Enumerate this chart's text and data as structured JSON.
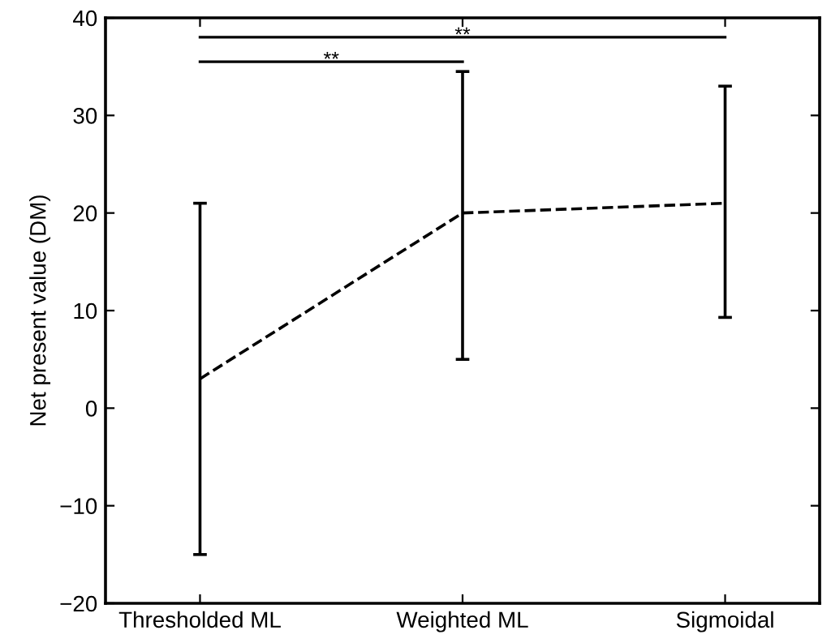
{
  "chart_data": {
    "type": "line",
    "ylabel": "Net present value (DM)",
    "categories": [
      "Thresholded ML",
      "Weighted ML",
      "Sigmoidal"
    ],
    "values": [
      3,
      20,
      21
    ],
    "errors": [
      [
        -15,
        21
      ],
      [
        5,
        34.5
      ],
      [
        9.3,
        33
      ]
    ],
    "color": "#000000",
    "line_style": "dashed",
    "marker": "none",
    "ylim": [
      -20,
      40
    ],
    "yticks": [
      {
        "value": -20,
        "label": "−20"
      },
      {
        "value": -10,
        "label": "−10"
      },
      0,
      10,
      20,
      30,
      40
    ],
    "grid": false,
    "legend": false,
    "annotations": [
      "**",
      "**"
    ]
  }
}
